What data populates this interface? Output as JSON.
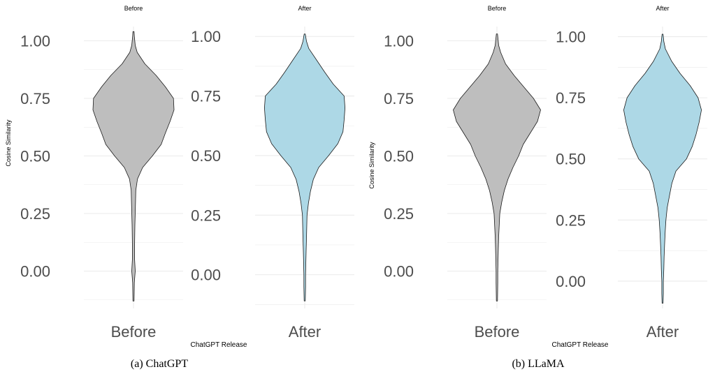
{
  "captions": [
    "(a) ChatGPT",
    "(b) LLaMA"
  ],
  "colors": {
    "before": "#bebebe",
    "after": "#add8e6",
    "outline": "#1a1a1a",
    "grid": "#ebebeb",
    "text": "#4d4d4d"
  },
  "chart_data": [
    {
      "type": "violin",
      "name": "ChatGPT",
      "xlabel": "ChatGPT Release",
      "ylabel": "Cosine Similarity",
      "grid": true,
      "panels": [
        {
          "title": "Before",
          "category": "Before",
          "color": "#bebebe",
          "ylim": [
            -0.15,
            1.05
          ],
          "yticks": [
            "0.00",
            "0.25",
            "0.50",
            "0.75",
            "1.00"
          ],
          "density": [
            [
              -0.13,
              0.2
            ],
            [
              -0.05,
              0.3
            ],
            [
              0.0,
              0.6
            ],
            [
              0.05,
              0.4
            ],
            [
              0.12,
              0.4
            ],
            [
              0.2,
              0.5
            ],
            [
              0.3,
              0.7
            ],
            [
              0.35,
              0.8
            ],
            [
              0.4,
              1.4
            ],
            [
              0.45,
              3.2
            ],
            [
              0.5,
              6.6
            ],
            [
              0.55,
              9.7
            ],
            [
              0.6,
              11.2
            ],
            [
              0.65,
              12.8
            ],
            [
              0.7,
              14.2
            ],
            [
              0.75,
              14.0
            ],
            [
              0.8,
              11.2
            ],
            [
              0.85,
              7.9
            ],
            [
              0.9,
              4.0
            ],
            [
              0.95,
              1.3
            ],
            [
              0.98,
              0.6
            ],
            [
              1.02,
              0.3
            ],
            [
              1.04,
              0.2
            ]
          ]
        },
        {
          "title": "After",
          "category": "After",
          "color": "#add8e6",
          "ylim": [
            -0.13,
            1.03
          ],
          "yticks": [
            "0.00",
            "0.25",
            "0.50",
            "0.75",
            "1.00"
          ],
          "density": [
            [
              -0.11,
              0.2
            ],
            [
              -0.05,
              0.3
            ],
            [
              0.0,
              0.3
            ],
            [
              0.05,
              0.4
            ],
            [
              0.1,
              0.5
            ],
            [
              0.15,
              0.6
            ],
            [
              0.2,
              0.7
            ],
            [
              0.25,
              0.8
            ],
            [
              0.3,
              1.3
            ],
            [
              0.35,
              2.0
            ],
            [
              0.4,
              3.0
            ],
            [
              0.45,
              4.9
            ],
            [
              0.5,
              8.4
            ],
            [
              0.55,
              11.6
            ],
            [
              0.6,
              13.4
            ],
            [
              0.65,
              13.8
            ],
            [
              0.7,
              14.1
            ],
            [
              0.75,
              13.8
            ],
            [
              0.8,
              10.0
            ],
            [
              0.85,
              7.0
            ],
            [
              0.9,
              4.2
            ],
            [
              0.95,
              1.4
            ],
            [
              0.98,
              0.6
            ],
            [
              1.01,
              0.2
            ]
          ]
        }
      ]
    },
    {
      "type": "violin",
      "name": "LLaMA",
      "xlabel": "ChatGPT Release",
      "ylabel": "Cosine Similarity",
      "grid": true,
      "panels": [
        {
          "title": "Before",
          "category": "Before",
          "color": "#bebebe",
          "ylim": [
            -0.15,
            1.05
          ],
          "yticks": [
            "0.00",
            "0.25",
            "0.50",
            "0.75",
            "1.00"
          ],
          "density": [
            [
              -0.13,
              0.2
            ],
            [
              -0.05,
              0.3
            ],
            [
              0.0,
              0.3
            ],
            [
              0.05,
              0.4
            ],
            [
              0.1,
              0.5
            ],
            [
              0.15,
              0.6
            ],
            [
              0.2,
              0.8
            ],
            [
              0.25,
              1.0
            ],
            [
              0.3,
              1.7
            ],
            [
              0.35,
              2.6
            ],
            [
              0.4,
              3.9
            ],
            [
              0.45,
              5.6
            ],
            [
              0.5,
              7.6
            ],
            [
              0.55,
              9.2
            ],
            [
              0.6,
              11.7
            ],
            [
              0.65,
              14.2
            ],
            [
              0.7,
              15.3
            ],
            [
              0.75,
              12.8
            ],
            [
              0.8,
              9.4
            ],
            [
              0.85,
              6.0
            ],
            [
              0.9,
              3.0
            ],
            [
              0.95,
              1.3
            ],
            [
              0.98,
              0.6
            ],
            [
              1.03,
              0.2
            ]
          ]
        },
        {
          "title": "After",
          "category": "After",
          "color": "#add8e6",
          "ylim": [
            -0.1,
            1.03
          ],
          "yticks": [
            "0.00",
            "0.25",
            "0.50",
            "0.75",
            "1.00"
          ],
          "density": [
            [
              -0.09,
              0.2
            ],
            [
              -0.05,
              0.3
            ],
            [
              0.0,
              0.3
            ],
            [
              0.05,
              0.5
            ],
            [
              0.1,
              0.6
            ],
            [
              0.15,
              0.8
            ],
            [
              0.2,
              1.0
            ],
            [
              0.25,
              1.3
            ],
            [
              0.3,
              1.8
            ],
            [
              0.35,
              2.7
            ],
            [
              0.4,
              3.6
            ],
            [
              0.45,
              5.2
            ],
            [
              0.5,
              9.3
            ],
            [
              0.55,
              11.5
            ],
            [
              0.6,
              13.0
            ],
            [
              0.65,
              14.2
            ],
            [
              0.7,
              15.1
            ],
            [
              0.75,
              13.8
            ],
            [
              0.8,
              10.7
            ],
            [
              0.85,
              6.8
            ],
            [
              0.9,
              3.5
            ],
            [
              0.95,
              1.1
            ],
            [
              0.98,
              0.5
            ],
            [
              1.01,
              0.2
            ]
          ]
        }
      ]
    }
  ]
}
